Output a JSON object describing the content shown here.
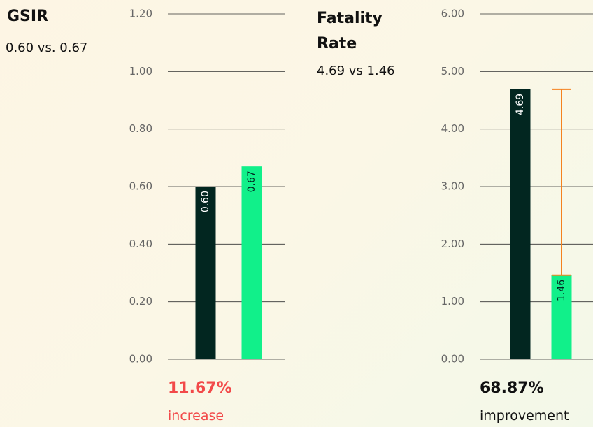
{
  "chart_data": [
    {
      "type": "bar",
      "title": "GSIR",
      "subtitle": "0.60 vs. 0.67",
      "values": [
        0.6,
        0.67
      ],
      "value_labels": [
        "0.60",
        "0.67"
      ],
      "colors": [
        "#022620",
        "#11f08a"
      ],
      "ylim": [
        0,
        1.2
      ],
      "yticks": [
        {
          "value": 0,
          "label": "0.00"
        },
        {
          "value": 0.2,
          "label": "0.20"
        },
        {
          "value": 0.4,
          "label": "0.40"
        },
        {
          "value": 0.6,
          "label": "0.60"
        },
        {
          "value": 0.8,
          "label": "0.80"
        },
        {
          "value": 1,
          "label": "1.00"
        },
        {
          "value": 1.2,
          "label": "1.20"
        }
      ],
      "grid": true,
      "annotation": "11.67%",
      "annotation_note": "increase",
      "annotation_color": "#f24949"
    },
    {
      "type": "bar",
      "title": "Fatality Rate",
      "subtitle": "4.69 vs 1.46",
      "values": [
        4.69,
        1.46
      ],
      "value_labels": [
        "4.69",
        "1.46"
      ],
      "colors": [
        "#022620",
        "#11f08a"
      ],
      "ylim": [
        0,
        6
      ],
      "yticks": [
        {
          "value": 0,
          "label": "0.00"
        },
        {
          "value": 1,
          "label": "1.00"
        },
        {
          "value": 2,
          "label": "2.00"
        },
        {
          "value": 3,
          "label": "3.00"
        },
        {
          "value": 4,
          "label": "4.00"
        },
        {
          "value": 5,
          "label": "5.00"
        },
        {
          "value": 6,
          "label": "6.00"
        }
      ],
      "grid": true,
      "connector_color": "#f5821f",
      "annotation": "68.87%",
      "annotation_note": "improvement",
      "annotation_color": "#111111"
    }
  ]
}
